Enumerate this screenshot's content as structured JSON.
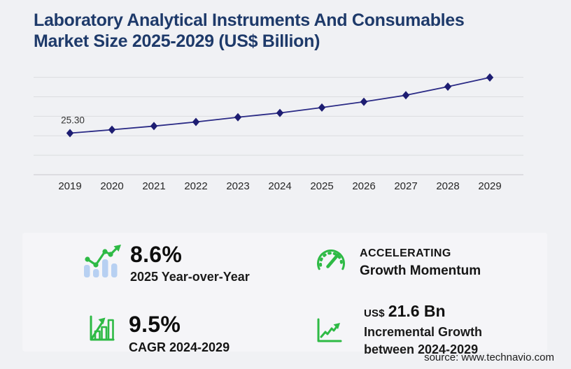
{
  "title": {
    "line1": "Laboratory Analytical Instruments And Consumables",
    "line2": "Market Size 2025-2029 (US$ Billion)"
  },
  "chart_data": {
    "type": "line",
    "title": "Laboratory Analytical Instruments And Consumables Market Size 2025-2029 (US$ Billion)",
    "categories": [
      "2019",
      "2020",
      "2021",
      "2022",
      "2023",
      "2024",
      "2025",
      "2026",
      "2027",
      "2028",
      "2029"
    ],
    "series": [
      {
        "name": "Market size (US$ Billion)",
        "values": [
          25.3,
          27.4,
          29.6,
          32.1,
          35.0,
          37.6,
          40.9,
          44.4,
          48.4,
          53.6,
          59.2
        ]
      }
    ],
    "annotations": [
      {
        "category": "2019",
        "text": "25.30"
      }
    ],
    "xlabel": "",
    "ylabel": "",
    "ylim": [
      0,
      59.3
    ],
    "gridlines": 6,
    "grid": true,
    "legend": false,
    "marker": "diamond",
    "line_color": "#2a2a85",
    "marker_color": "#1d1d72"
  },
  "stats": {
    "yoy": {
      "value": "8.6%",
      "label": "2025 Year-over-Year"
    },
    "momentum": {
      "line1": "ACCELERATING",
      "line2": "Growth Momentum"
    },
    "cagr": {
      "value": "9.5%",
      "label": "CAGR 2024-2029"
    },
    "incremental": {
      "currency": "US$",
      "value": "21.6 Bn",
      "line1": "Incremental Growth",
      "line2": "between 2024-2029"
    }
  },
  "source": "source: www.technavio.com",
  "colors": {
    "background": "#f0f1f4",
    "panel": "#f5f5f8",
    "title_navy": "#1e3a6a",
    "line_navy": "#2a2a85",
    "marker_navy": "#1d1d72",
    "accent_green": "#2eba45",
    "bar_blue": "#b7d0f2"
  }
}
